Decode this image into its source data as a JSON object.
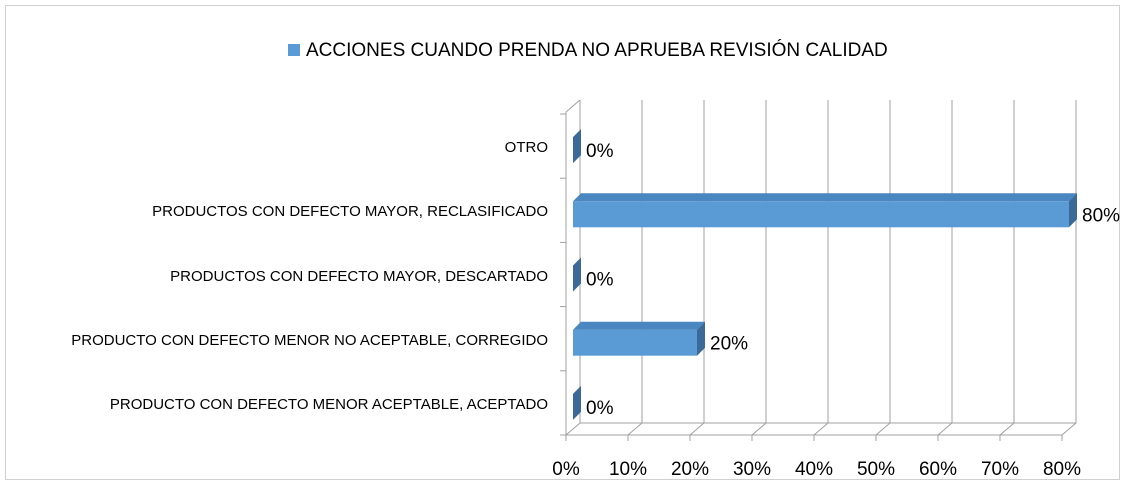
{
  "chart_data": {
    "type": "bar",
    "orientation": "horizontal",
    "3d": true,
    "categories": [
      "PRODUCTO CON DEFECTO MENOR ACEPTABLE, ACEPTADO",
      "PRODUCTO CON DEFECTO MENOR NO ACEPTABLE, CORREGIDO",
      "PRODUCTOS CON DEFECTO MAYOR, DESCARTADO",
      "PRODUCTOS CON DEFECTO MAYOR, RECLASIFICADO",
      "OTRO"
    ],
    "series": [
      {
        "name": "ACCIONES CUANDO PRENDA NO APRUEBA REVISIÓN CALIDAD",
        "color": "#5b9bd5",
        "values": [
          0,
          20,
          0,
          80,
          0
        ],
        "value_labels": [
          "0%",
          "20%",
          "0%",
          "80%",
          "0%"
        ]
      }
    ],
    "xlim": [
      0,
      80
    ],
    "xticks": [
      {
        "value": 0,
        "label": "0%"
      },
      {
        "value": 10,
        "label": "10%"
      },
      {
        "value": 20,
        "label": "20%"
      },
      {
        "value": 30,
        "label": "30%"
      },
      {
        "value": 40,
        "label": "40%"
      },
      {
        "value": 50,
        "label": "50%"
      },
      {
        "value": 60,
        "label": "60%"
      },
      {
        "value": 70,
        "label": "70%"
      },
      {
        "value": 80,
        "label": "80%"
      }
    ],
    "grid": true,
    "legend": "top"
  }
}
